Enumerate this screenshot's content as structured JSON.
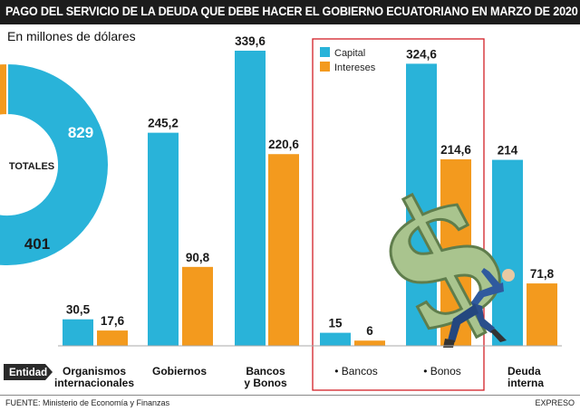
{
  "title": "PAGO DEL SERVICIO DE LA DEUDA QUE DEBE HACER EL GOBIERNO ECUATORIANO EN MARZO DE 2020",
  "subtitle": "En millones de dólares",
  "source": "FUENTE: Ministerio de Economía y Finanzas",
  "brand": "EXPRESO",
  "colors": {
    "capital": "#29b3d9",
    "intereses": "#f39a1e",
    "accent": "#d21f27",
    "title_bg": "#1c1c1c"
  },
  "chart_data": [
    {
      "type": "pie",
      "center_label": "TOTALES",
      "slices": [
        {
          "name": "Capital",
          "value": 829,
          "label": "829"
        },
        {
          "name": "Intereses",
          "value": 401,
          "label": "401"
        }
      ]
    },
    {
      "type": "bar",
      "axis_label": "Entidad",
      "legend": [
        "Capital",
        "Intereses"
      ],
      "legend_position": "top",
      "series": [
        {
          "name": "Capital",
          "values": [
            30.5,
            245.2,
            339.6,
            15,
            324.6,
            214
          ]
        },
        {
          "name": "Intereses",
          "values": [
            17.6,
            90.8,
            220.6,
            6,
            214.6,
            71.8
          ]
        }
      ],
      "value_labels": {
        "capital": [
          "30,5",
          "245,2",
          "339,6",
          "15",
          "324,6",
          "214"
        ],
        "intereses": [
          "17,6",
          "90,8",
          "220,6",
          "6",
          "214,6",
          "71,8"
        ]
      },
      "categories": [
        {
          "lines": [
            "Organismos",
            "internacionales"
          ],
          "bullet": false
        },
        {
          "lines": [
            "Gobiernos"
          ],
          "bullet": false
        },
        {
          "lines": [
            "Bancos",
            "y Bonos"
          ],
          "bullet": false
        },
        {
          "lines": [
            "Bancos"
          ],
          "bullet": true
        },
        {
          "lines": [
            "Bonos"
          ],
          "bullet": true
        },
        {
          "lines": [
            "Deuda",
            "interna"
          ],
          "bullet": false
        }
      ],
      "ylim": [
        0,
        360
      ]
    }
  ]
}
